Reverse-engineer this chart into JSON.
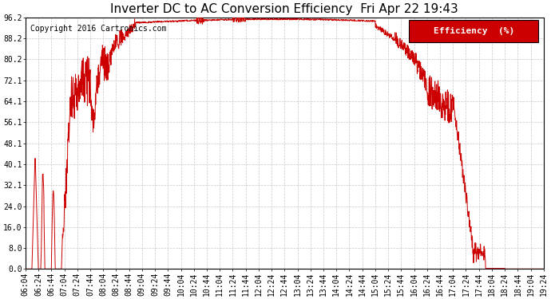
{
  "title": "Inverter DC to AC Conversion Efficiency  Fri Apr 22 19:43",
  "copyright": "Copyright 2016 Cartronics.com",
  "legend_label": "Efficiency  (%)",
  "legend_bg": "#cc0000",
  "legend_fg": "#ffffff",
  "line_color": "#cc0000",
  "bg_color": "#ffffff",
  "plot_bg": "#ffffff",
  "grid_color": "#c8c8c8",
  "ylim": [
    0.0,
    96.2
  ],
  "yticks": [
    0.0,
    8.0,
    16.0,
    24.0,
    32.1,
    40.1,
    48.1,
    56.1,
    64.1,
    72.1,
    80.2,
    88.2,
    96.2
  ],
  "xtick_labels": [
    "06:04",
    "06:24",
    "06:44",
    "07:04",
    "07:24",
    "07:44",
    "08:04",
    "08:24",
    "08:44",
    "09:04",
    "09:24",
    "09:44",
    "10:04",
    "10:24",
    "10:44",
    "11:04",
    "11:24",
    "11:44",
    "12:04",
    "12:24",
    "12:44",
    "13:04",
    "13:24",
    "13:44",
    "14:04",
    "14:24",
    "14:44",
    "15:04",
    "15:24",
    "15:44",
    "16:04",
    "16:24",
    "16:44",
    "17:04",
    "17:24",
    "17:44",
    "18:04",
    "18:24",
    "18:44",
    "19:04",
    "19:24"
  ],
  "title_fontsize": 11,
  "copyright_fontsize": 7,
  "tick_fontsize": 7,
  "legend_fontsize": 8
}
